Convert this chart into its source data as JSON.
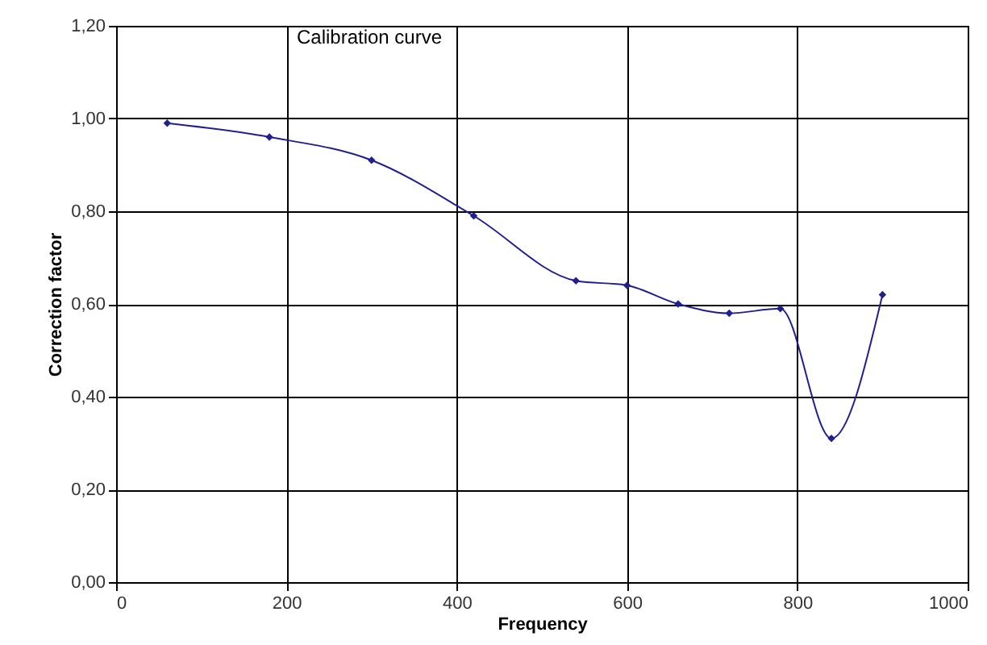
{
  "chart_data": {
    "type": "line",
    "title": "Calibration curve",
    "xlabel": "Frequency",
    "ylabel": "Correction factor",
    "x": [
      60,
      180,
      300,
      420,
      540,
      600,
      660,
      720,
      780,
      840,
      900
    ],
    "series": [
      {
        "color": "#1f1f8f",
        "values": [
          0.99,
          0.96,
          0.91,
          0.79,
          0.65,
          0.64,
          0.6,
          0.58,
          0.59,
          0.31,
          0.62
        ]
      }
    ],
    "xlim": [
      0,
      1000
    ],
    "xticks": [
      0,
      200,
      400,
      600,
      800,
      1000
    ],
    "ylim": [
      0,
      1.2
    ],
    "yticks": [
      {
        "value": 0,
        "label": "0,00"
      },
      {
        "value": 0.2,
        "label": "0,20"
      },
      {
        "value": 0.4,
        "label": "0,40"
      },
      {
        "value": 0.6,
        "label": "0,60"
      },
      {
        "value": 0.8,
        "label": "0,80"
      },
      {
        "value": 1,
        "label": "1,00"
      },
      {
        "value": 1.2,
        "label": "1,20"
      }
    ],
    "grid": true,
    "marker": "diamond",
    "line_style": "solid"
  }
}
